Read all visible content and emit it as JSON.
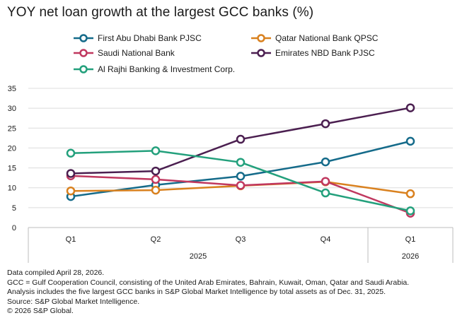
{
  "title": "YOY net loan growth at the largest GCC banks (%)",
  "chart_data": {
    "type": "line",
    "title": "YOY net loan growth at the largest GCC banks (%)",
    "categories": [
      "Q1",
      "Q2",
      "Q3",
      "Q4",
      "Q1"
    ],
    "year_groups": [
      {
        "label": "2025",
        "count": 4
      },
      {
        "label": "2026",
        "count": 1
      }
    ],
    "ylim": [
      0,
      35
    ],
    "yticks": [
      "0",
      "5",
      "10",
      "15",
      "20",
      "25",
      "30",
      "35"
    ],
    "grid": true,
    "legend_position": "top",
    "series": [
      {
        "name": "First Abu Dhabi Bank PJSC",
        "color": "#156b8a",
        "values": [
          7.8,
          10.7,
          12.9,
          16.5,
          21.7
        ]
      },
      {
        "name": "Qatar National Bank QPSC",
        "color": "#d9811f",
        "values": [
          9.2,
          9.4,
          10.5,
          11.5,
          8.5
        ]
      },
      {
        "name": "Saudi National Bank",
        "color": "#c0385f",
        "values": [
          13.0,
          12.1,
          10.6,
          11.6,
          3.6
        ]
      },
      {
        "name": "Emirates NBD Bank PJSC",
        "color": "#4b1f50",
        "values": [
          13.6,
          14.2,
          22.2,
          26.1,
          30.1
        ]
      },
      {
        "name": "Al Rajhi Banking & Investment Corp.",
        "color": "#23a07c",
        "values": [
          18.7,
          19.3,
          16.4,
          8.7,
          4.2
        ]
      }
    ]
  },
  "notes": [
    "Data compiled April 28, 2026.",
    "GCC = Gulf Cooperation Council, consisting of the United Arab Emirates, Bahrain, Kuwait, Oman, Qatar and Saudi Arabia.",
    "Analysis includes the five largest GCC banks in S&P Global Market Intelligence by total assets as of Dec. 31, 2025.",
    "Source: S&P Global Market Intelligence.",
    "© 2026 S&P Global."
  ]
}
